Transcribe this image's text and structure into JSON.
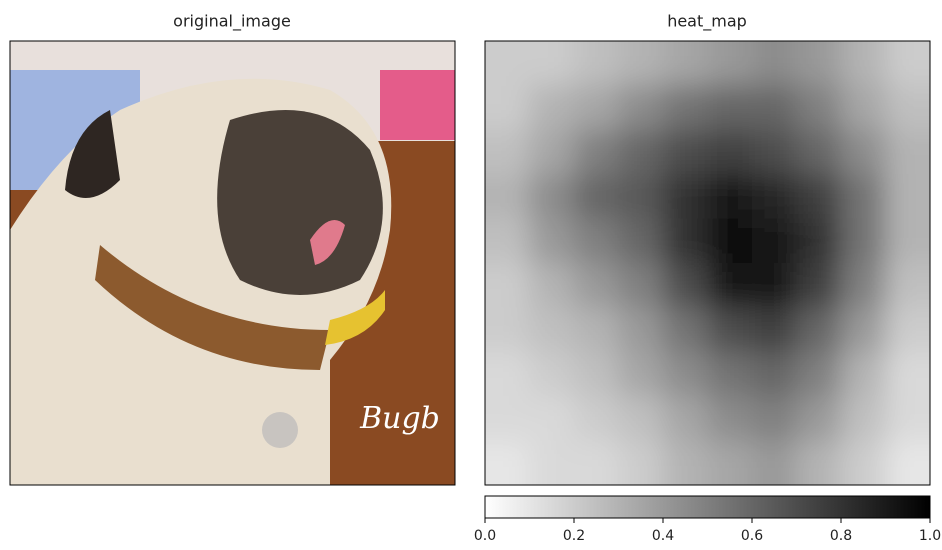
{
  "chart_data": [
    {
      "type": "image",
      "title": "original_image",
      "image_text": "Bugb"
    },
    {
      "type": "heatmap",
      "title": "heat_map",
      "cmap": "gray_r",
      "values": [
        [
          0.2,
          0.2,
          0.25,
          0.3,
          0.35,
          0.4,
          0.45,
          0.4,
          0.3,
          0.2
        ],
        [
          0.2,
          0.3,
          0.35,
          0.45,
          0.55,
          0.6,
          0.6,
          0.5,
          0.35,
          0.25
        ],
        [
          0.25,
          0.35,
          0.5,
          0.6,
          0.7,
          0.75,
          0.7,
          0.6,
          0.45,
          0.3
        ],
        [
          0.3,
          0.45,
          0.6,
          0.65,
          0.8,
          0.9,
          0.85,
          0.75,
          0.55,
          0.3
        ],
        [
          0.25,
          0.4,
          0.5,
          0.6,
          0.8,
          0.95,
          0.9,
          0.8,
          0.55,
          0.3
        ],
        [
          0.2,
          0.3,
          0.4,
          0.5,
          0.7,
          0.9,
          0.9,
          0.75,
          0.5,
          0.25
        ],
        [
          0.2,
          0.25,
          0.3,
          0.4,
          0.55,
          0.7,
          0.75,
          0.6,
          0.4,
          0.2
        ],
        [
          0.15,
          0.2,
          0.25,
          0.35,
          0.45,
          0.55,
          0.6,
          0.5,
          0.3,
          0.15
        ],
        [
          0.15,
          0.15,
          0.2,
          0.25,
          0.35,
          0.45,
          0.5,
          0.4,
          0.25,
          0.15
        ],
        [
          0.1,
          0.15,
          0.15,
          0.2,
          0.3,
          0.35,
          0.4,
          0.3,
          0.2,
          0.1
        ]
      ],
      "clim": [
        0,
        1
      ],
      "cticks": [
        {
          "value": 0,
          "label": "0.0"
        },
        {
          "value": 0.2,
          "label": "0.2"
        },
        {
          "value": 0.4,
          "label": "0.4"
        },
        {
          "value": 0.6,
          "label": "0.6"
        },
        {
          "value": 0.8,
          "label": "0.8"
        },
        {
          "value": 1,
          "label": "1.0"
        }
      ]
    }
  ]
}
